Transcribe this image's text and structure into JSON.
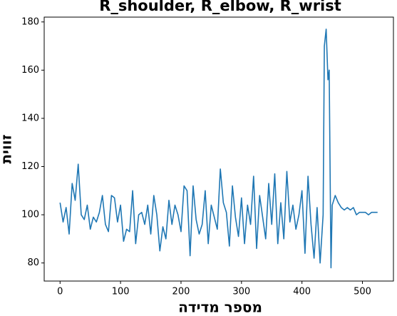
{
  "chart_data": {
    "type": "line",
    "title": "R_shoulder, R_elbow, R_wrist",
    "xlabel": "מספר מדידה",
    "ylabel": "זווית",
    "x": [
      0,
      5,
      10,
      15,
      20,
      25,
      30,
      35,
      40,
      45,
      50,
      55,
      60,
      65,
      70,
      75,
      80,
      85,
      90,
      95,
      100,
      105,
      110,
      115,
      120,
      125,
      130,
      135,
      140,
      145,
      150,
      155,
      160,
      165,
      170,
      175,
      180,
      185,
      190,
      195,
      200,
      205,
      210,
      215,
      220,
      225,
      230,
      235,
      240,
      245,
      250,
      255,
      260,
      265,
      270,
      275,
      280,
      285,
      290,
      295,
      300,
      305,
      310,
      315,
      320,
      325,
      330,
      335,
      340,
      345,
      350,
      355,
      360,
      365,
      370,
      375,
      380,
      385,
      390,
      395,
      400,
      405,
      410,
      415,
      420,
      425,
      430,
      435,
      437,
      440,
      443,
      445,
      448,
      450,
      455,
      460,
      465,
      470,
      475,
      480,
      485,
      490,
      495,
      500,
      505,
      510,
      515,
      520,
      525
    ],
    "series": [
      {
        "name": "R_shoulder, R_elbow, R_wrist",
        "color": "#1f77b4",
        "values": [
          105,
          97,
          103,
          92,
          113,
          106,
          121,
          100,
          98,
          104,
          94,
          99,
          97,
          101,
          108,
          96,
          93,
          108,
          107,
          97,
          104,
          89,
          94,
          93,
          110,
          88,
          100,
          101,
          96,
          104,
          92,
          108,
          100,
          85,
          95,
          90,
          106,
          96,
          104,
          100,
          93,
          112,
          110,
          83,
          112,
          98,
          92,
          96,
          110,
          88,
          104,
          99,
          94,
          119,
          105,
          101,
          87,
          112,
          99,
          91,
          107,
          88,
          104,
          96,
          116,
          86,
          108,
          99,
          90,
          113,
          96,
          117,
          88,
          105,
          90,
          118,
          97,
          104,
          94,
          100,
          110,
          84,
          116,
          96,
          82,
          103,
          80,
          100,
          170,
          177,
          156,
          160,
          78,
          104,
          108,
          105,
          103,
          102,
          103,
          102,
          103,
          100,
          101,
          101,
          101,
          100,
          101,
          101,
          101
        ]
      }
    ],
    "xlim": [
      -26.25,
      551.25
    ],
    "ylim": [
      72.5,
      182
    ],
    "xticks": [
      0,
      100,
      200,
      300,
      400,
      500
    ],
    "yticks": [
      80,
      100,
      120,
      140,
      160,
      180
    ]
  }
}
